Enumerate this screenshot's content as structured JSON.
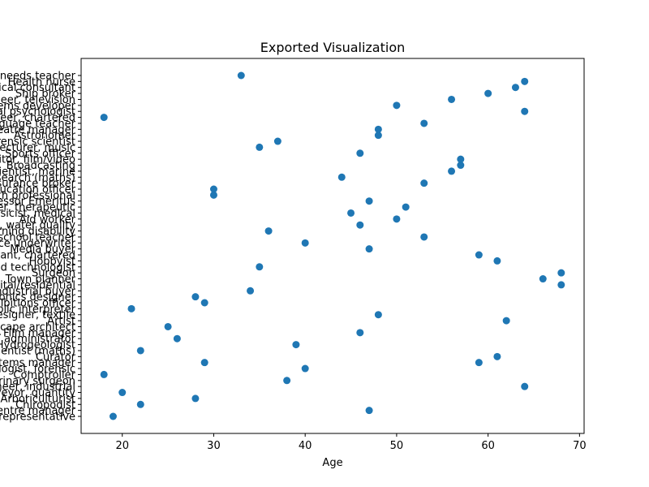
{
  "chart_data": {
    "type": "scatter",
    "title": "Exported Visualization",
    "xlabel": "Age",
    "ylabel": "",
    "xlim": [
      15.5,
      70.5
    ],
    "x_ticks": [
      20,
      30,
      40,
      50,
      60,
      70
    ],
    "grid": false,
    "legend": "none",
    "marker_color": "#1f77b4",
    "categories": [
      "Sales representative",
      "Retail centre manager",
      "Chiropodist",
      "Arboriculturist",
      "Surveyor, quantity",
      "Engineer, industrial",
      "Veterinary surgeon",
      "Comptroller",
      "Psychologist, forensic",
      "Systems manager",
      "Curator",
      "Scientist (maths)",
      "Hydrogeologist",
      "IT administrator",
      "Film manager",
      "Landscape architect",
      "Artist",
      "Designer, textile",
      "Public interpreter",
      "Exhibitions officer",
      "Electronics designer",
      "Industrial buyer",
      "Hospital/residential",
      "Town planner",
      "Surgeon",
      "Food technologist",
      "Hobbyist",
      "Accountant, chartered",
      "Media buyer",
      "Insurance underwriter",
      "Special school teacher",
      "Learning disability",
      "Scientist, water quality",
      "Aid worker",
      "Physicist, medical",
      "Radiographer, therapeutic",
      "Professor Emeritus",
      "Health professional",
      "Education officer",
      "Insurance broker",
      "Research (maths)",
      "Scientist, marine",
      "Broadcasting",
      "Editor, film/video",
      "Sports officer",
      "Lecturer, music",
      "Forensic scientist",
      "Astronomer",
      "Theatre manager",
      "Teacher, language teacher",
      "Engineer, chartered",
      "Clinical psychologist",
      "Systems developer",
      "Engineer, television",
      "Ship broker",
      "Clinical consultant",
      "Health nurse",
      "Special needs teacher"
    ],
    "points": [
      {
        "y": "Sales representative",
        "x": 19
      },
      {
        "y": "Retail centre manager",
        "x": 47
      },
      {
        "y": "Chiropodist",
        "x": 22
      },
      {
        "y": "Arboriculturist",
        "x": 28
      },
      {
        "y": "Surveyor, quantity",
        "x": 20
      },
      {
        "y": "Engineer, industrial",
        "x": 64
      },
      {
        "y": "Veterinary surgeon",
        "x": 38
      },
      {
        "y": "Comptroller",
        "x": 18
      },
      {
        "y": "Psychologist, forensic",
        "x": 40
      },
      {
        "y": "Systems manager",
        "x": 29
      },
      {
        "y": "Systems manager",
        "x": 59
      },
      {
        "y": "Curator",
        "x": 61
      },
      {
        "y": "Scientist (maths)",
        "x": 22
      },
      {
        "y": "Hydrogeologist",
        "x": 39
      },
      {
        "y": "IT administrator",
        "x": 26
      },
      {
        "y": "Film manager",
        "x": 46
      },
      {
        "y": "Landscape architect",
        "x": 25
      },
      {
        "y": "Artist",
        "x": 62
      },
      {
        "y": "Designer, textile",
        "x": 48
      },
      {
        "y": "Public interpreter",
        "x": 21
      },
      {
        "y": "Exhibitions officer",
        "x": 29
      },
      {
        "y": "Electronics designer",
        "x": 28
      },
      {
        "y": "Industrial buyer",
        "x": 34
      },
      {
        "y": "Hospital/residential",
        "x": 68
      },
      {
        "y": "Town planner",
        "x": 66
      },
      {
        "y": "Surgeon",
        "x": 68
      },
      {
        "y": "Food technologist",
        "x": 35
      },
      {
        "y": "Hobbyist",
        "x": 61
      },
      {
        "y": "Accountant, chartered",
        "x": 59
      },
      {
        "y": "Media buyer",
        "x": 47
      },
      {
        "y": "Insurance underwriter",
        "x": 40
      },
      {
        "y": "Special school teacher",
        "x": 53
      },
      {
        "y": "Learning disability",
        "x": 36
      },
      {
        "y": "Scientist, water quality",
        "x": 46
      },
      {
        "y": "Aid worker",
        "x": 50
      },
      {
        "y": "Physicist, medical",
        "x": 45
      },
      {
        "y": "Radiographer, therapeutic",
        "x": 51
      },
      {
        "y": "Professor Emeritus",
        "x": 47
      },
      {
        "y": "Health professional",
        "x": 30
      },
      {
        "y": "Education officer",
        "x": 30
      },
      {
        "y": "Insurance broker",
        "x": 53
      },
      {
        "y": "Research (maths)",
        "x": 44
      },
      {
        "y": "Scientist, marine",
        "x": 56
      },
      {
        "y": "Broadcasting",
        "x": 57
      },
      {
        "y": "Editor, film/video",
        "x": 57
      },
      {
        "y": "Sports officer",
        "x": 46
      },
      {
        "y": "Lecturer, music",
        "x": 35
      },
      {
        "y": "Forensic scientist",
        "x": 37
      },
      {
        "y": "Astronomer",
        "x": 48
      },
      {
        "y": "Theatre manager",
        "x": 48
      },
      {
        "y": "Teacher, language teacher",
        "x": 53
      },
      {
        "y": "Engineer, chartered",
        "x": 18
      },
      {
        "y": "Clinical psychologist",
        "x": 64
      },
      {
        "y": "Systems developer",
        "x": 50
      },
      {
        "y": "Engineer, television",
        "x": 56
      },
      {
        "y": "Ship broker",
        "x": 60
      },
      {
        "y": "Clinical consultant",
        "x": 63
      },
      {
        "y": "Health nurse",
        "x": 64
      },
      {
        "y": "Special needs teacher",
        "x": 33
      }
    ]
  }
}
